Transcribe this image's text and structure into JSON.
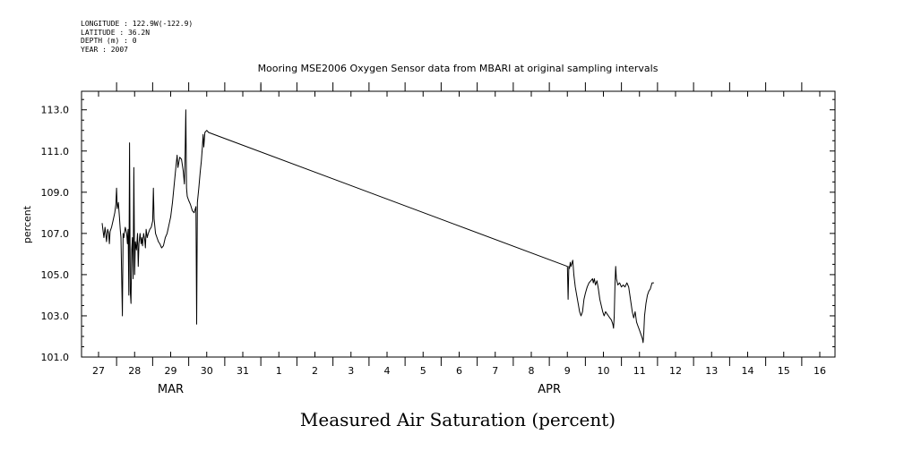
{
  "header": {
    "longitude": "LONGITUDE : 122.9W(-122.9)",
    "latitude": "LATITUDE : 36.2N",
    "depth": "DEPTH (m) : 0",
    "year": "YEAR : 2007"
  },
  "chart_data": {
    "type": "line",
    "title": "Mooring MSE2006 Oxygen Sensor data from MBARI at original sampling intervals",
    "ylabel": "percent",
    "xlabel": "Measured Air Saturation (percent)",
    "ylim": [
      101.0,
      113.9
    ],
    "y_ticks": [
      "101.0",
      "103.0",
      "105.0",
      "107.0",
      "109.0",
      "111.0",
      "113.0"
    ],
    "y_tick_values": [
      101,
      103,
      105,
      107,
      109,
      111,
      113
    ],
    "x_day_labels": [
      "27",
      "28",
      "29",
      "30",
      "31",
      "1",
      "2",
      "3",
      "4",
      "5",
      "6",
      "7",
      "8",
      "9",
      "10",
      "11",
      "12",
      "13",
      "14",
      "15",
      "16"
    ],
    "x_day_values": [
      0,
      1,
      2,
      3,
      4,
      5,
      6,
      7,
      8,
      9,
      10,
      11,
      12,
      13,
      14,
      15,
      16,
      17,
      18,
      19,
      20
    ],
    "x_axis_note": "day index: 0 = Mar 27, 5 = Apr 1, 20 = Apr 16",
    "x_range": [
      -0.5,
      20.5
    ],
    "month_labels": [
      {
        "label": "MAR",
        "at": 2.0
      },
      {
        "label": "APR",
        "at": 12.5
      }
    ],
    "series": [
      {
        "color": "#000000",
        "points": [
          [
            0.1,
            107.5
          ],
          [
            0.12,
            107.2
          ],
          [
            0.15,
            106.8
          ],
          [
            0.18,
            107.3
          ],
          [
            0.2,
            107.0
          ],
          [
            0.22,
            106.6
          ],
          [
            0.25,
            107.2
          ],
          [
            0.28,
            107.0
          ],
          [
            0.3,
            106.5
          ],
          [
            0.32,
            107.1
          ],
          [
            0.36,
            107.3
          ],
          [
            0.4,
            107.6
          ],
          [
            0.45,
            108.0
          ],
          [
            0.48,
            108.4
          ],
          [
            0.5,
            109.2
          ],
          [
            0.52,
            108.2
          ],
          [
            0.55,
            108.5
          ],
          [
            0.58,
            107.8
          ],
          [
            0.6,
            107.2
          ],
          [
            0.62,
            106.8
          ],
          [
            0.66,
            103.0
          ],
          [
            0.68,
            107.0
          ],
          [
            0.7,
            106.8
          ],
          [
            0.74,
            107.3
          ],
          [
            0.78,
            107.0
          ],
          [
            0.8,
            106.5
          ],
          [
            0.82,
            107.2
          ],
          [
            0.84,
            104.0
          ],
          [
            0.86,
            111.4
          ],
          [
            0.88,
            104.2
          ],
          [
            0.9,
            103.6
          ],
          [
            0.92,
            106.2
          ],
          [
            0.94,
            106.8
          ],
          [
            0.96,
            104.8
          ],
          [
            0.98,
            110.2
          ],
          [
            1.0,
            105.0
          ],
          [
            1.02,
            106.6
          ],
          [
            1.05,
            106.2
          ],
          [
            1.08,
            107.0
          ],
          [
            1.1,
            105.4
          ],
          [
            1.12,
            106.5
          ],
          [
            1.15,
            107.0
          ],
          [
            1.18,
            106.5
          ],
          [
            1.2,
            106.8
          ],
          [
            1.22,
            106.4
          ],
          [
            1.25,
            107.0
          ],
          [
            1.28,
            106.7
          ],
          [
            1.3,
            106.3
          ],
          [
            1.32,
            107.2
          ],
          [
            1.35,
            106.8
          ],
          [
            1.38,
            107.0
          ],
          [
            1.42,
            107.2
          ],
          [
            1.46,
            107.3
          ],
          [
            1.5,
            107.6
          ],
          [
            1.52,
            109.2
          ],
          [
            1.54,
            107.7
          ],
          [
            1.58,
            107.0
          ],
          [
            1.62,
            106.8
          ],
          [
            1.66,
            106.6
          ],
          [
            1.7,
            106.5
          ],
          [
            1.75,
            106.3
          ],
          [
            1.8,
            106.4
          ],
          [
            1.85,
            106.8
          ],
          [
            1.9,
            107.0
          ],
          [
            1.95,
            107.4
          ],
          [
            2.0,
            107.8
          ],
          [
            2.05,
            108.5
          ],
          [
            2.1,
            109.4
          ],
          [
            2.15,
            110.3
          ],
          [
            2.18,
            110.8
          ],
          [
            2.2,
            110.2
          ],
          [
            2.25,
            110.7
          ],
          [
            2.3,
            110.6
          ],
          [
            2.35,
            110.0
          ],
          [
            2.38,
            109.4
          ],
          [
            2.4,
            110.8
          ],
          [
            2.42,
            113.0
          ],
          [
            2.44,
            109.2
          ],
          [
            2.46,
            108.8
          ],
          [
            2.5,
            108.6
          ],
          [
            2.55,
            108.4
          ],
          [
            2.6,
            108.1
          ],
          [
            2.65,
            108.0
          ],
          [
            2.7,
            108.3
          ],
          [
            2.72,
            102.6
          ],
          [
            2.74,
            108.5
          ],
          [
            2.78,
            109.2
          ],
          [
            2.82,
            110.0
          ],
          [
            2.85,
            110.5
          ],
          [
            2.88,
            111.2
          ],
          [
            2.9,
            111.8
          ],
          [
            2.92,
            111.2
          ],
          [
            2.95,
            111.9
          ],
          [
            3.0,
            112.0
          ],
          [
            3.05,
            111.9
          ],
          [
            13.0,
            105.4
          ],
          [
            13.02,
            103.8
          ],
          [
            13.04,
            105.4
          ],
          [
            13.06,
            105.3
          ],
          [
            13.08,
            105.6
          ],
          [
            13.1,
            105.4
          ],
          [
            13.15,
            105.7
          ],
          [
            13.18,
            105.0
          ],
          [
            13.22,
            104.4
          ],
          [
            13.26,
            104.0
          ],
          [
            13.3,
            103.6
          ],
          [
            13.34,
            103.2
          ],
          [
            13.38,
            103.0
          ],
          [
            13.42,
            103.2
          ],
          [
            13.46,
            103.8
          ],
          [
            13.5,
            104.1
          ],
          [
            13.55,
            104.4
          ],
          [
            13.6,
            104.6
          ],
          [
            13.65,
            104.7
          ],
          [
            13.7,
            104.8
          ],
          [
            13.72,
            104.6
          ],
          [
            13.75,
            104.8
          ],
          [
            13.78,
            104.5
          ],
          [
            13.82,
            104.7
          ],
          [
            13.86,
            104.3
          ],
          [
            13.9,
            103.8
          ],
          [
            13.94,
            103.5
          ],
          [
            13.98,
            103.2
          ],
          [
            14.02,
            103.0
          ],
          [
            14.06,
            103.2
          ],
          [
            14.1,
            103.1
          ],
          [
            14.14,
            103.0
          ],
          [
            14.18,
            102.9
          ],
          [
            14.22,
            102.8
          ],
          [
            14.26,
            102.6
          ],
          [
            14.28,
            102.4
          ],
          [
            14.3,
            103.0
          ],
          [
            14.32,
            104.5
          ],
          [
            14.34,
            105.4
          ],
          [
            14.36,
            104.8
          ],
          [
            14.4,
            104.5
          ],
          [
            14.45,
            104.6
          ],
          [
            14.5,
            104.4
          ],
          [
            14.55,
            104.5
          ],
          [
            14.6,
            104.4
          ],
          [
            14.65,
            104.6
          ],
          [
            14.7,
            104.4
          ],
          [
            14.75,
            103.8
          ],
          [
            14.8,
            103.2
          ],
          [
            14.84,
            102.9
          ],
          [
            14.88,
            103.2
          ],
          [
            14.92,
            102.7
          ],
          [
            14.96,
            102.5
          ],
          [
            15.0,
            102.3
          ],
          [
            15.04,
            102.1
          ],
          [
            15.08,
            101.9
          ],
          [
            15.1,
            101.7
          ],
          [
            15.12,
            102.2
          ],
          [
            15.14,
            103.0
          ],
          [
            15.18,
            103.6
          ],
          [
            15.22,
            104.0
          ],
          [
            15.26,
            104.2
          ],
          [
            15.3,
            104.3
          ],
          [
            15.35,
            104.6
          ],
          [
            15.4,
            104.6
          ]
        ]
      }
    ],
    "grid": false,
    "legend": "none"
  }
}
